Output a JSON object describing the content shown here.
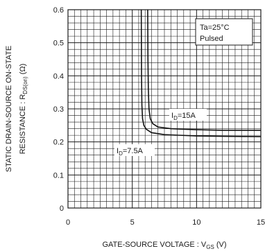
{
  "chart_data": {
    "type": "line",
    "xlabel": "GATE-SOURCE VOLTAGE : V",
    "xlabel_sub": "GS",
    "xlabel_unit": " (V)",
    "ylabel_line1": "STATIC DRAIN-SOURCE ON-STATE",
    "ylabel_line2_prefix": "RESISTANCE : R",
    "ylabel_line2_sub": "DS(on)",
    "ylabel_line2_unit": " (Ω)",
    "xlim": [
      0,
      15
    ],
    "ylim": [
      0,
      0.6
    ],
    "x_ticks": [
      0,
      5,
      10,
      15
    ],
    "x_tick_labels": [
      "0",
      "5",
      "10",
      "15"
    ],
    "y_ticks": [
      0,
      0.1,
      0.2,
      0.3,
      0.4,
      0.5,
      0.6
    ],
    "y_tick_labels": [
      "0",
      "0.1",
      "0.2",
      "0.3",
      "0.4",
      "0.5",
      "0.6"
    ],
    "grid": true,
    "legend_box": {
      "line1": "Ta=25°C",
      "line2": "Pulsed",
      "position": "top-right"
    },
    "series": [
      {
        "label_prefix": "I",
        "label_sub": "D",
        "label_suffix": "=15A",
        "x": [
          6.2,
          6.22,
          6.25,
          6.3,
          6.4,
          6.6,
          7.0,
          8.0,
          10.0,
          12.0,
          15.0
        ],
        "y": [
          0.6,
          0.45,
          0.36,
          0.3,
          0.27,
          0.255,
          0.245,
          0.24,
          0.237,
          0.235,
          0.235
        ]
      },
      {
        "label_prefix": "I",
        "label_sub": "D",
        "label_suffix": "=7.5A",
        "x": [
          5.7,
          5.72,
          5.75,
          5.8,
          5.9,
          6.1,
          6.5,
          7.5,
          10.0,
          12.0,
          15.0
        ],
        "y": [
          0.6,
          0.4,
          0.31,
          0.27,
          0.25,
          0.238,
          0.228,
          0.222,
          0.218,
          0.217,
          0.216
        ]
      }
    ]
  }
}
